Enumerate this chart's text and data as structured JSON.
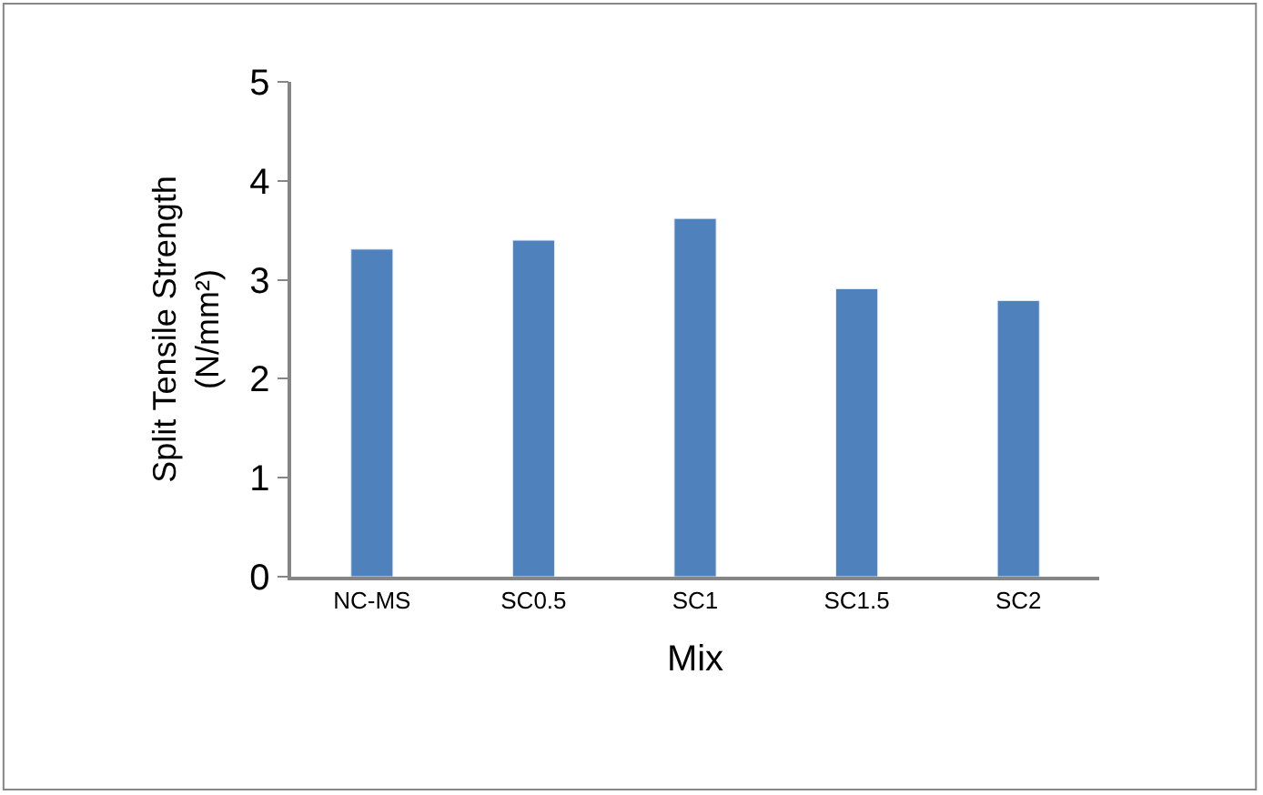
{
  "chart_data": {
    "type": "bar",
    "categories": [
      "NC-MS",
      "SC0.5",
      "SC1",
      "SC1.5",
      "SC2"
    ],
    "values": [
      3.31,
      3.4,
      3.62,
      2.91,
      2.79
    ],
    "color": "#4f81bd",
    "xlabel": "Mix",
    "ylabel": "Split Tensile Strength\n(N/mm²)",
    "ylim": [
      0,
      5
    ],
    "yticks": [
      0,
      1,
      2,
      3,
      4,
      5
    ]
  }
}
